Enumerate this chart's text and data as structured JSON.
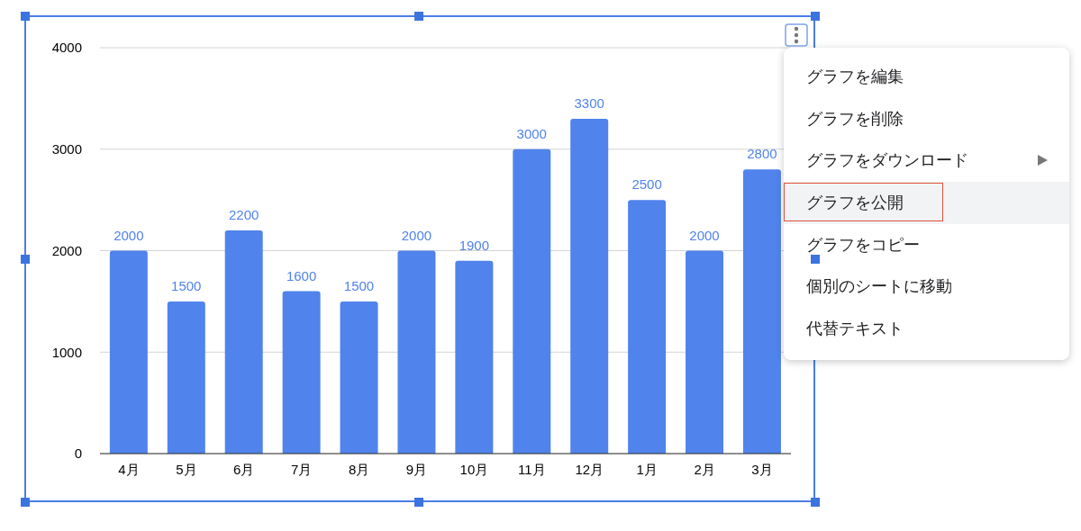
{
  "chart_data": [
    {
      "type": "bar",
      "categories": [
        "4月",
        "5月",
        "6月",
        "7月",
        "8月",
        "9月",
        "10月",
        "11月",
        "12月",
        "1月",
        "2月",
        "3月"
      ],
      "values": [
        2000,
        1500,
        2200,
        1600,
        1500,
        2000,
        1900,
        3000,
        3300,
        2500,
        2000,
        2800
      ],
      "color": "#5083ec",
      "ylim": [
        0,
        4000
      ],
      "yticks": [
        0,
        1000,
        2000,
        3000,
        4000
      ],
      "grid": "y",
      "data_labels": true
    },
    {
      "type": "other",
      "annotations": [
        "グラフを編集",
        "グラフを削除",
        "グラフをダウンロード",
        "グラフを公開",
        "グラフをコピー",
        "個別のシートに移動",
        "代替テキスト"
      ]
    }
  ]
}
